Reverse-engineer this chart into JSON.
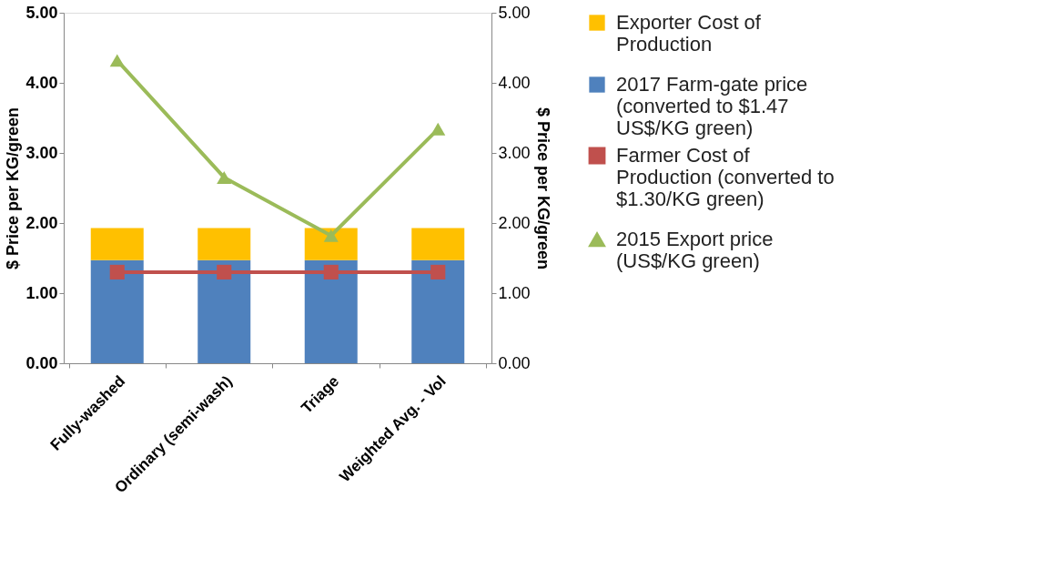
{
  "chart_data": {
    "type": "bar",
    "ylabel": "$ Price per KG/green",
    "y2label": "$ Price per KG/green",
    "categories": [
      "Fully-washed",
      "Ordinary (semi-wash)",
      "Triage",
      "Weighted Avg. - Vol"
    ],
    "stacked": true,
    "legend": "right",
    "grid": false,
    "ylim": [
      0,
      5
    ],
    "yticks": [
      {
        "value": 0,
        "label": "0.00"
      },
      {
        "value": 1,
        "label": "1.00"
      },
      {
        "value": 2,
        "label": "2.00"
      },
      {
        "value": 3,
        "label": "3.00"
      },
      {
        "value": 4,
        "label": "4.00"
      },
      {
        "value": 5,
        "label": "5.00"
      }
    ],
    "y2lim": [
      0,
      5
    ],
    "y2ticks": [
      {
        "value": 0,
        "label": "0.00"
      },
      {
        "value": 1,
        "label": "1.00"
      },
      {
        "value": 2,
        "label": "2.00"
      },
      {
        "value": 3,
        "label": "3.00"
      },
      {
        "value": 4,
        "label": "4.00"
      },
      {
        "value": 5,
        "label": "5.00"
      }
    ],
    "series": [
      {
        "name": "2017 Farm-gate price (converted to $1.47 US$/KG green)",
        "color": "#4f81bd",
        "values": [
          1.47,
          1.47,
          1.47,
          1.47
        ]
      },
      {
        "name": "Exporter Cost of Production",
        "color": "#ffc000",
        "values": [
          0.46,
          0.46,
          0.46,
          0.46
        ]
      },
      {
        "name": "Farmer Cost of Production (converted to $1.30/KG green)",
        "type": "line",
        "axis": "y2",
        "marker": "square",
        "color": "#c0504d",
        "values": [
          1.3,
          1.3,
          1.3,
          1.3
        ]
      },
      {
        "name": "2015 Export price (US$/KG green)",
        "type": "line",
        "axis": "y2",
        "marker": "triangle",
        "color": "#9bbb59",
        "values": [
          4.32,
          2.65,
          1.82,
          3.34
        ]
      }
    ]
  }
}
